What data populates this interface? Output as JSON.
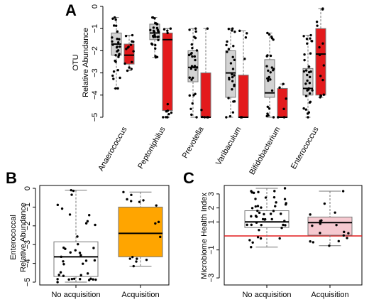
{
  "chart_data": [
    {
      "panel": "A",
      "type": "box",
      "ylabel_lines": [
        "OTU",
        "Relative Abundance"
      ],
      "ylim": [
        -5,
        0
      ],
      "yticks": [
        0,
        -1,
        -2,
        -3,
        -4,
        -5
      ],
      "colors": {
        "group1": "#d3d3d3",
        "group2": "#e31a1c"
      },
      "categories": [
        "Anaerococcus",
        "Peptoniphilus",
        "Prevotella",
        "Varibaculum",
        "Bifidobacterium",
        "Enterococcus"
      ],
      "series": [
        {
          "boxes": [
            {
              "min": -3.7,
              "q1": -2.2,
              "median": -1.7,
              "q3": -1.2,
              "max": -0.5
            },
            {
              "min": -2.3,
              "q1": -1.5,
              "median": -1.2,
              "q3": -0.8,
              "max": -0.5
            },
            {
              "min": -5,
              "q1": -3.4,
              "median": -2.75,
              "q3": -2.0,
              "max": -1.0
            },
            {
              "min": -5,
              "q1": -4.1,
              "median": -3.0,
              "q3": -2.0,
              "max": -1.0
            },
            {
              "min": -5,
              "q1": -4.1,
              "median": -3.9,
              "q3": -2.4,
              "max": -1.2
            },
            {
              "min": -5,
              "q1": -4.0,
              "median": -3.7,
              "q3": -2.8,
              "max": -1.3
            }
          ]
        },
        {
          "boxes": [
            {
              "min": -2.9,
              "q1": -2.6,
              "median": -2.2,
              "q3": -1.7,
              "max": -1.3
            },
            {
              "min": -5,
              "q1": -4.7,
              "median": -1.5,
              "q3": -1.2,
              "max": -1.0
            },
            {
              "min": -5,
              "q1": -5,
              "median": -5,
              "q3": -3.0,
              "max": -1.0
            },
            {
              "min": -5,
              "q1": -5,
              "median": -5,
              "q3": -3.1,
              "max": -1.1
            },
            {
              "min": -5,
              "q1": -5,
              "median": -5,
              "q3": -3.7,
              "max": -3.5
            },
            {
              "min": -4.1,
              "q1": -4.0,
              "median": -2.15,
              "q3": -1.0,
              "max": -0.1
            }
          ]
        }
      ]
    },
    {
      "panel": "B",
      "type": "box",
      "ylabel_lines": [
        "Enterococcal",
        "Relative Abundance"
      ],
      "ylim": [
        -5,
        0
      ],
      "yticks": [
        0,
        -1,
        -2,
        -3,
        -4,
        -5
      ],
      "categories": [
        "No acquisition",
        "Acquisition"
      ],
      "colors": [
        "#ffffff",
        "#ffa500"
      ],
      "boxes": [
        {
          "min": -5,
          "q1": -4.7,
          "median": -3.65,
          "q3": -2.85,
          "max": -0.1
        },
        {
          "min": -4.15,
          "q1": -3.65,
          "median": -2.4,
          "q3": -1.0,
          "max": -0.2
        }
      ]
    },
    {
      "panel": "C",
      "type": "box",
      "ylabel": "Microbiome Health Index",
      "ylim": [
        -3.3,
        3.4
      ],
      "yticks": [
        3,
        2,
        1,
        -1,
        -3
      ],
      "tick_labels": [
        "3",
        "2",
        "1",
        "−1",
        "−3"
      ],
      "reference_line": {
        "y": 0,
        "color": "#e31a1c"
      },
      "categories": [
        "No acquisition",
        "Acquisition"
      ],
      "colors": [
        "#ffffff",
        "#f6c9d0"
      ],
      "boxes": [
        {
          "min": -0.8,
          "q1": 0.6,
          "median": 1.0,
          "q3": 1.8,
          "max": 3.4
        },
        {
          "min": -0.7,
          "q1": 0.05,
          "median": 0.95,
          "q3": 1.35,
          "max": 3.2
        }
      ]
    }
  ]
}
